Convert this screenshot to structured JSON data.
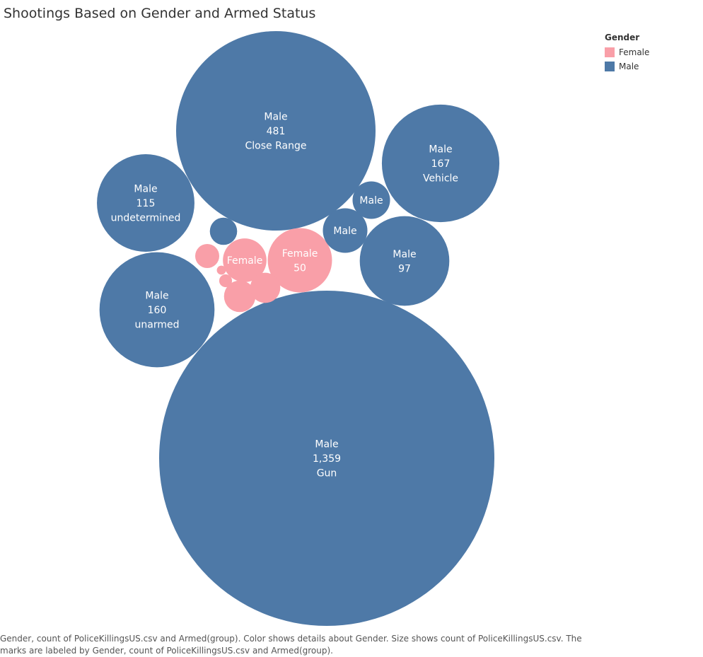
{
  "title": "Shootings Based on Gender and Armed Status",
  "legend": {
    "title": "Gender",
    "items": [
      {
        "label": "Female",
        "color": "#f99fa8"
      },
      {
        "label": "Male",
        "color": "#4e79a7"
      }
    ]
  },
  "caption": "Gender, count of PoliceKillingsUS.csv and Armed(group).  Color shows details about Gender.  Size shows count of PoliceKillingsUS.csv.  The marks are labeled by Gender, count of PoliceKillingsUS.csv and Armed(group).",
  "chart_data": {
    "type": "bubble",
    "title": "Shootings Based on Gender and Armed Status",
    "size_measure": "count of PoliceKillingsUS.csv",
    "color_dimension": "Gender",
    "bubbles": [
      {
        "gender": "Male",
        "count": 1359,
        "armed": "Gun",
        "labels": [
          "Male",
          "1,359",
          "Gun"
        ]
      },
      {
        "gender": "Male",
        "count": 481,
        "armed": "Close Range",
        "labels": [
          "Male",
          "481",
          "Close Range"
        ]
      },
      {
        "gender": "Male",
        "count": 167,
        "armed": "Vehicle",
        "labels": [
          "Male",
          "167",
          "Vehicle"
        ]
      },
      {
        "gender": "Male",
        "count": 160,
        "armed": "unarmed",
        "labels": [
          "Male",
          "160",
          "unarmed"
        ]
      },
      {
        "gender": "Male",
        "count": 115,
        "armed": "undetermined",
        "labels": [
          "Male",
          "115",
          "undetermined"
        ]
      },
      {
        "gender": "Male",
        "count": 97,
        "armed": "",
        "labels": [
          "Male",
          "97"
        ]
      },
      {
        "gender": "Female",
        "count": 50,
        "armed": "",
        "labels": [
          "Female",
          "50"
        ]
      },
      {
        "gender": "Male",
        "count": 24,
        "armed": "",
        "labels": [
          "Male"
        ]
      },
      {
        "gender": "Female",
        "count": 23,
        "armed": "",
        "labels": [
          "Female"
        ]
      },
      {
        "gender": "Male",
        "count": 17,
        "armed": "",
        "labels": [
          "Male"
        ]
      },
      {
        "gender": "Female",
        "count": 12,
        "armed": "",
        "labels": []
      },
      {
        "gender": "Female",
        "count": 11,
        "armed": "",
        "labels": []
      },
      {
        "gender": "Male",
        "count": 9,
        "armed": "",
        "labels": []
      },
      {
        "gender": "Female",
        "count": 7,
        "armed": "",
        "labels": []
      },
      {
        "gender": "Female",
        "count": 2,
        "armed": "",
        "labels": []
      },
      {
        "gender": "Female",
        "count": 1,
        "armed": "",
        "labels": []
      }
    ]
  }
}
